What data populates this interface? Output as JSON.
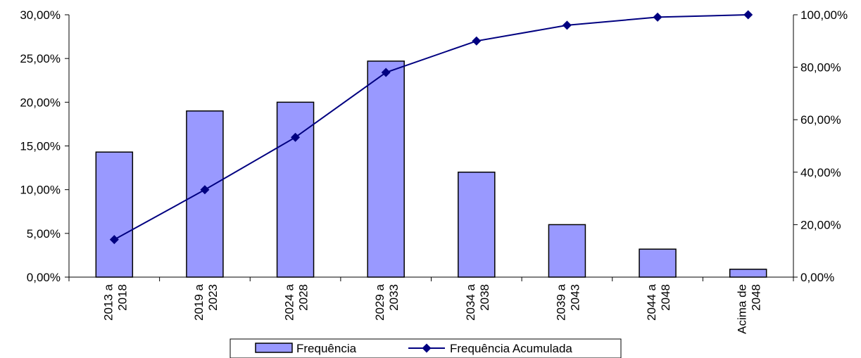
{
  "chart_data": {
    "type": "bar",
    "categories": [
      [
        "2013 a",
        "2018"
      ],
      [
        "2019 a",
        "2023"
      ],
      [
        "2024 a",
        "2028"
      ],
      [
        "2029 a",
        "2033"
      ],
      [
        "2034 a",
        "2038"
      ],
      [
        "2039 a",
        "2043"
      ],
      [
        "2044 a",
        "2048"
      ],
      [
        "Acima de",
        "2048"
      ]
    ],
    "series": [
      {
        "name": "Frequência",
        "type": "bar",
        "axis": "left",
        "color": "#9999ff",
        "values": [
          0.143,
          0.19,
          0.2,
          0.247,
          0.12,
          0.06,
          0.032,
          0.009
        ]
      },
      {
        "name": "Frequência Acumulada",
        "type": "line",
        "axis": "right",
        "color": "#000080",
        "values": [
          0.143,
          0.333,
          0.533,
          0.78,
          0.9,
          0.96,
          0.991,
          1.0
        ]
      }
    ],
    "y_left": {
      "min": 0,
      "max": 0.3,
      "ticks": [
        "0,00%",
        "5,00%",
        "10,00%",
        "15,00%",
        "20,00%",
        "25,00%",
        "30,00%"
      ]
    },
    "y_right": {
      "min": 0,
      "max": 1.0,
      "ticks": [
        "0,00%",
        "20,00%",
        "40,00%",
        "60,00%",
        "80,00%",
        "100,00%"
      ]
    },
    "grid": false,
    "legend_position": "bottom"
  }
}
